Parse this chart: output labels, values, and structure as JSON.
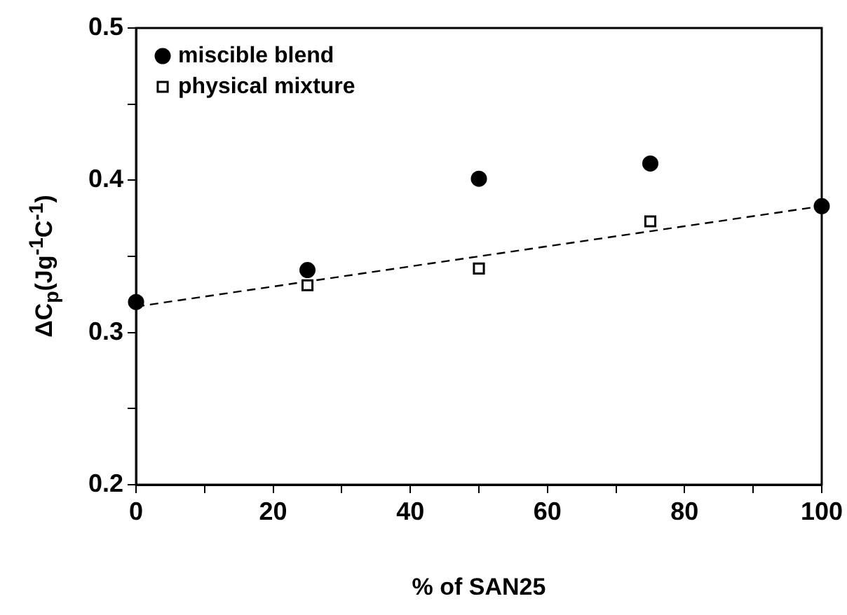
{
  "chart_data": {
    "type": "scatter",
    "xlabel": "% of SAN25",
    "ylabel": "ΔC$_{p}$(Jg$^{-1}$C$^{-1}$)",
    "xlim": [
      0,
      100
    ],
    "xticks": [
      0,
      {
        "value": 10,
        "label": null
      },
      20,
      {
        "value": 30,
        "label": null
      },
      40,
      {
        "value": 50,
        "label": null
      },
      60,
      {
        "value": 70,
        "label": null
      },
      80,
      {
        "value": 90,
        "label": null
      },
      100
    ],
    "ylim": [
      0.2,
      0.5
    ],
    "yticks": [
      0.2,
      {
        "value": 0.25,
        "label": null
      },
      0.3,
      {
        "value": 0.35,
        "label": null
      },
      0.4,
      {
        "value": 0.45,
        "label": null
      },
      0.5
    ],
    "grid": false,
    "legend": "top left",
    "series": [
      {
        "name": "miscible blend",
        "color": "#000000",
        "marker": "circle",
        "x": [
          0,
          25,
          50,
          75,
          100
        ],
        "values": [
          0.32,
          0.341,
          0.401,
          0.411,
          0.383
        ]
      },
      {
        "name": "physical mixture",
        "color": "#000000",
        "marker": "square",
        "x": [
          25,
          50,
          75
        ],
        "values": [
          0.331,
          0.342,
          0.373
        ]
      },
      {
        "type": "line",
        "color": "#000000",
        "line_style": "dashed",
        "marker": "none",
        "x": [
          0,
          100
        ],
        "values": [
          0.317,
          0.383
        ]
      }
    ]
  }
}
